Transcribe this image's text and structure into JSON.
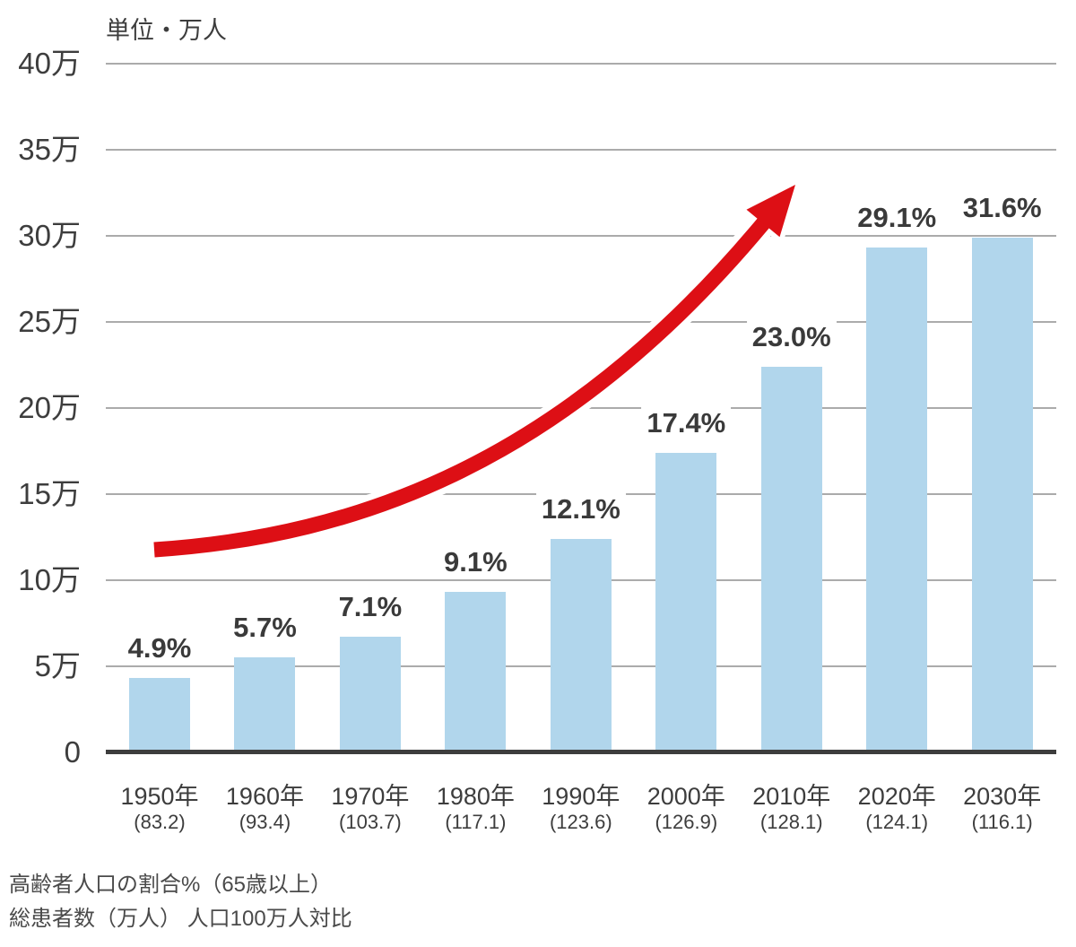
{
  "chart_data": {
    "type": "bar",
    "title": "",
    "unit_label": "単位・万人",
    "categories": [
      "1950年",
      "1960年",
      "1970年",
      "1980年",
      "1990年",
      "2000年",
      "2010年",
      "2020年",
      "2030年"
    ],
    "category_sub_labels": [
      "(83.2)",
      "(93.4)",
      "(103.7)",
      "(117.1)",
      "(123.6)",
      "(126.9)",
      "(128.1)",
      "(124.1)",
      "(116.1)"
    ],
    "series": [
      {
        "name": "総患者数（万人） 人口100万人対比",
        "type": "bar",
        "values": [
          4.3,
          5.5,
          6.7,
          9.3,
          12.4,
          17.4,
          22.4,
          29.3,
          29.9
        ]
      },
      {
        "name": "高齢者人口の割合%（65歳以上）",
        "type": "data-labels",
        "values": [
          "4.9%",
          "5.7%",
          "7.1%",
          "9.1%",
          "12.1%",
          "17.4%",
          "23.0%",
          "29.1%",
          "31.6%"
        ]
      }
    ],
    "y_ticks": [
      {
        "value": 0,
        "label": "0"
      },
      {
        "value": 5,
        "label": "5万"
      },
      {
        "value": 10,
        "label": "10万"
      },
      {
        "value": 15,
        "label": "15万"
      },
      {
        "value": 20,
        "label": "20万"
      },
      {
        "value": 25,
        "label": "25万"
      },
      {
        "value": 30,
        "label": "30万"
      },
      {
        "value": 35,
        "label": "35万"
      },
      {
        "value": 40,
        "label": "40万"
      }
    ],
    "ylim": [
      0,
      40
    ],
    "grid": "horizontal",
    "legend_position": "none",
    "annotations": [
      {
        "type": "curved-arrow",
        "meaning": "rising trend",
        "color": "#dd0f15"
      }
    ],
    "footnotes": [
      "高齢者人口の割合%（65歳以上）",
      "総患者数（万人） 人口100万人対比"
    ],
    "colors": {
      "bar": "#b1d6ec",
      "arrow": "#dd0f15",
      "grid": "#ababab",
      "axis": "#3d3d3d",
      "text": "#3d3d3d"
    }
  }
}
